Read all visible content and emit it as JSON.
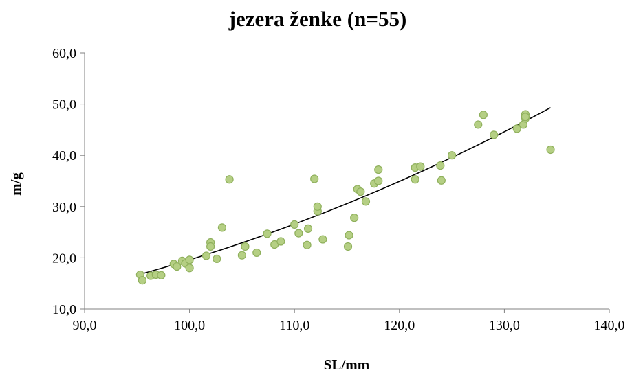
{
  "chart_data": {
    "type": "scatter",
    "title": "jezera ženke (n=55)",
    "xlabel": "SL/mm",
    "ylabel": "m/g",
    "xlim": [
      90,
      140
    ],
    "ylim": [
      10,
      60
    ],
    "xticks": [
      90,
      100,
      110,
      120,
      130,
      140
    ],
    "yticks": [
      10,
      20,
      30,
      40,
      50,
      60
    ],
    "xtick_labels": [
      "90,0",
      "100,0",
      "110,0",
      "120,0",
      "130,0",
      "140,0"
    ],
    "ytick_labels": [
      "10,0",
      "20,0",
      "30,0",
      "40,0",
      "50,0",
      "60,0"
    ],
    "grid": false,
    "legend": "none",
    "colors": {
      "marker_fill": "#b5cf84",
      "marker_edge": "#8fb05c",
      "trendline": "#000000",
      "axis": "#808080"
    },
    "series": [
      {
        "points": [
          [
            95.3,
            16.7
          ],
          [
            95.5,
            15.6
          ],
          [
            96.3,
            16.5
          ],
          [
            96.8,
            16.7
          ],
          [
            97.3,
            16.6
          ],
          [
            98.5,
            18.8
          ],
          [
            98.8,
            18.3
          ],
          [
            99.3,
            19.4
          ],
          [
            99.6,
            18.9
          ],
          [
            100.0,
            19.6
          ],
          [
            100.0,
            18.0
          ],
          [
            101.6,
            20.4
          ],
          [
            102.0,
            23.0
          ],
          [
            102.0,
            22.2
          ],
          [
            102.6,
            19.8
          ],
          [
            103.1,
            25.9
          ],
          [
            103.8,
            35.3
          ],
          [
            105.0,
            20.5
          ],
          [
            105.3,
            22.2
          ],
          [
            106.4,
            21.0
          ],
          [
            107.4,
            24.7
          ],
          [
            108.1,
            22.6
          ],
          [
            108.7,
            23.2
          ],
          [
            110.0,
            26.5
          ],
          [
            110.4,
            24.8
          ],
          [
            111.2,
            22.5
          ],
          [
            111.3,
            25.7
          ],
          [
            111.9,
            35.4
          ],
          [
            112.2,
            29.1
          ],
          [
            112.2,
            30.0
          ],
          [
            112.7,
            23.6
          ],
          [
            115.1,
            22.2
          ],
          [
            115.2,
            24.4
          ],
          [
            115.7,
            27.8
          ],
          [
            116.0,
            33.4
          ],
          [
            116.3,
            32.9
          ],
          [
            116.8,
            31.0
          ],
          [
            117.6,
            34.5
          ],
          [
            118.0,
            35.0
          ],
          [
            118.0,
            37.2
          ],
          [
            121.5,
            37.6
          ],
          [
            121.5,
            35.3
          ],
          [
            122.0,
            37.8
          ],
          [
            123.9,
            38.0
          ],
          [
            124.0,
            35.1
          ],
          [
            125.0,
            40.0
          ],
          [
            127.5,
            46.0
          ],
          [
            128.0,
            47.9
          ],
          [
            129.0,
            44.0
          ],
          [
            131.2,
            45.2
          ],
          [
            131.8,
            46.0
          ],
          [
            132.0,
            48.0
          ],
          [
            132.0,
            47.2
          ],
          [
            132.0,
            47.5
          ],
          [
            134.4,
            41.1
          ]
        ]
      }
    ],
    "trendline": {
      "type": "polynomial",
      "x_range": [
        95.3,
        134.4
      ],
      "points": [
        [
          95.3,
          16.8
        ],
        [
          100,
          19.6
        ],
        [
          105,
          22.9
        ],
        [
          110,
          26.6
        ],
        [
          115,
          30.6
        ],
        [
          120,
          34.9
        ],
        [
          125,
          39.6
        ],
        [
          130,
          44.6
        ],
        [
          134.4,
          49.3
        ]
      ]
    }
  }
}
